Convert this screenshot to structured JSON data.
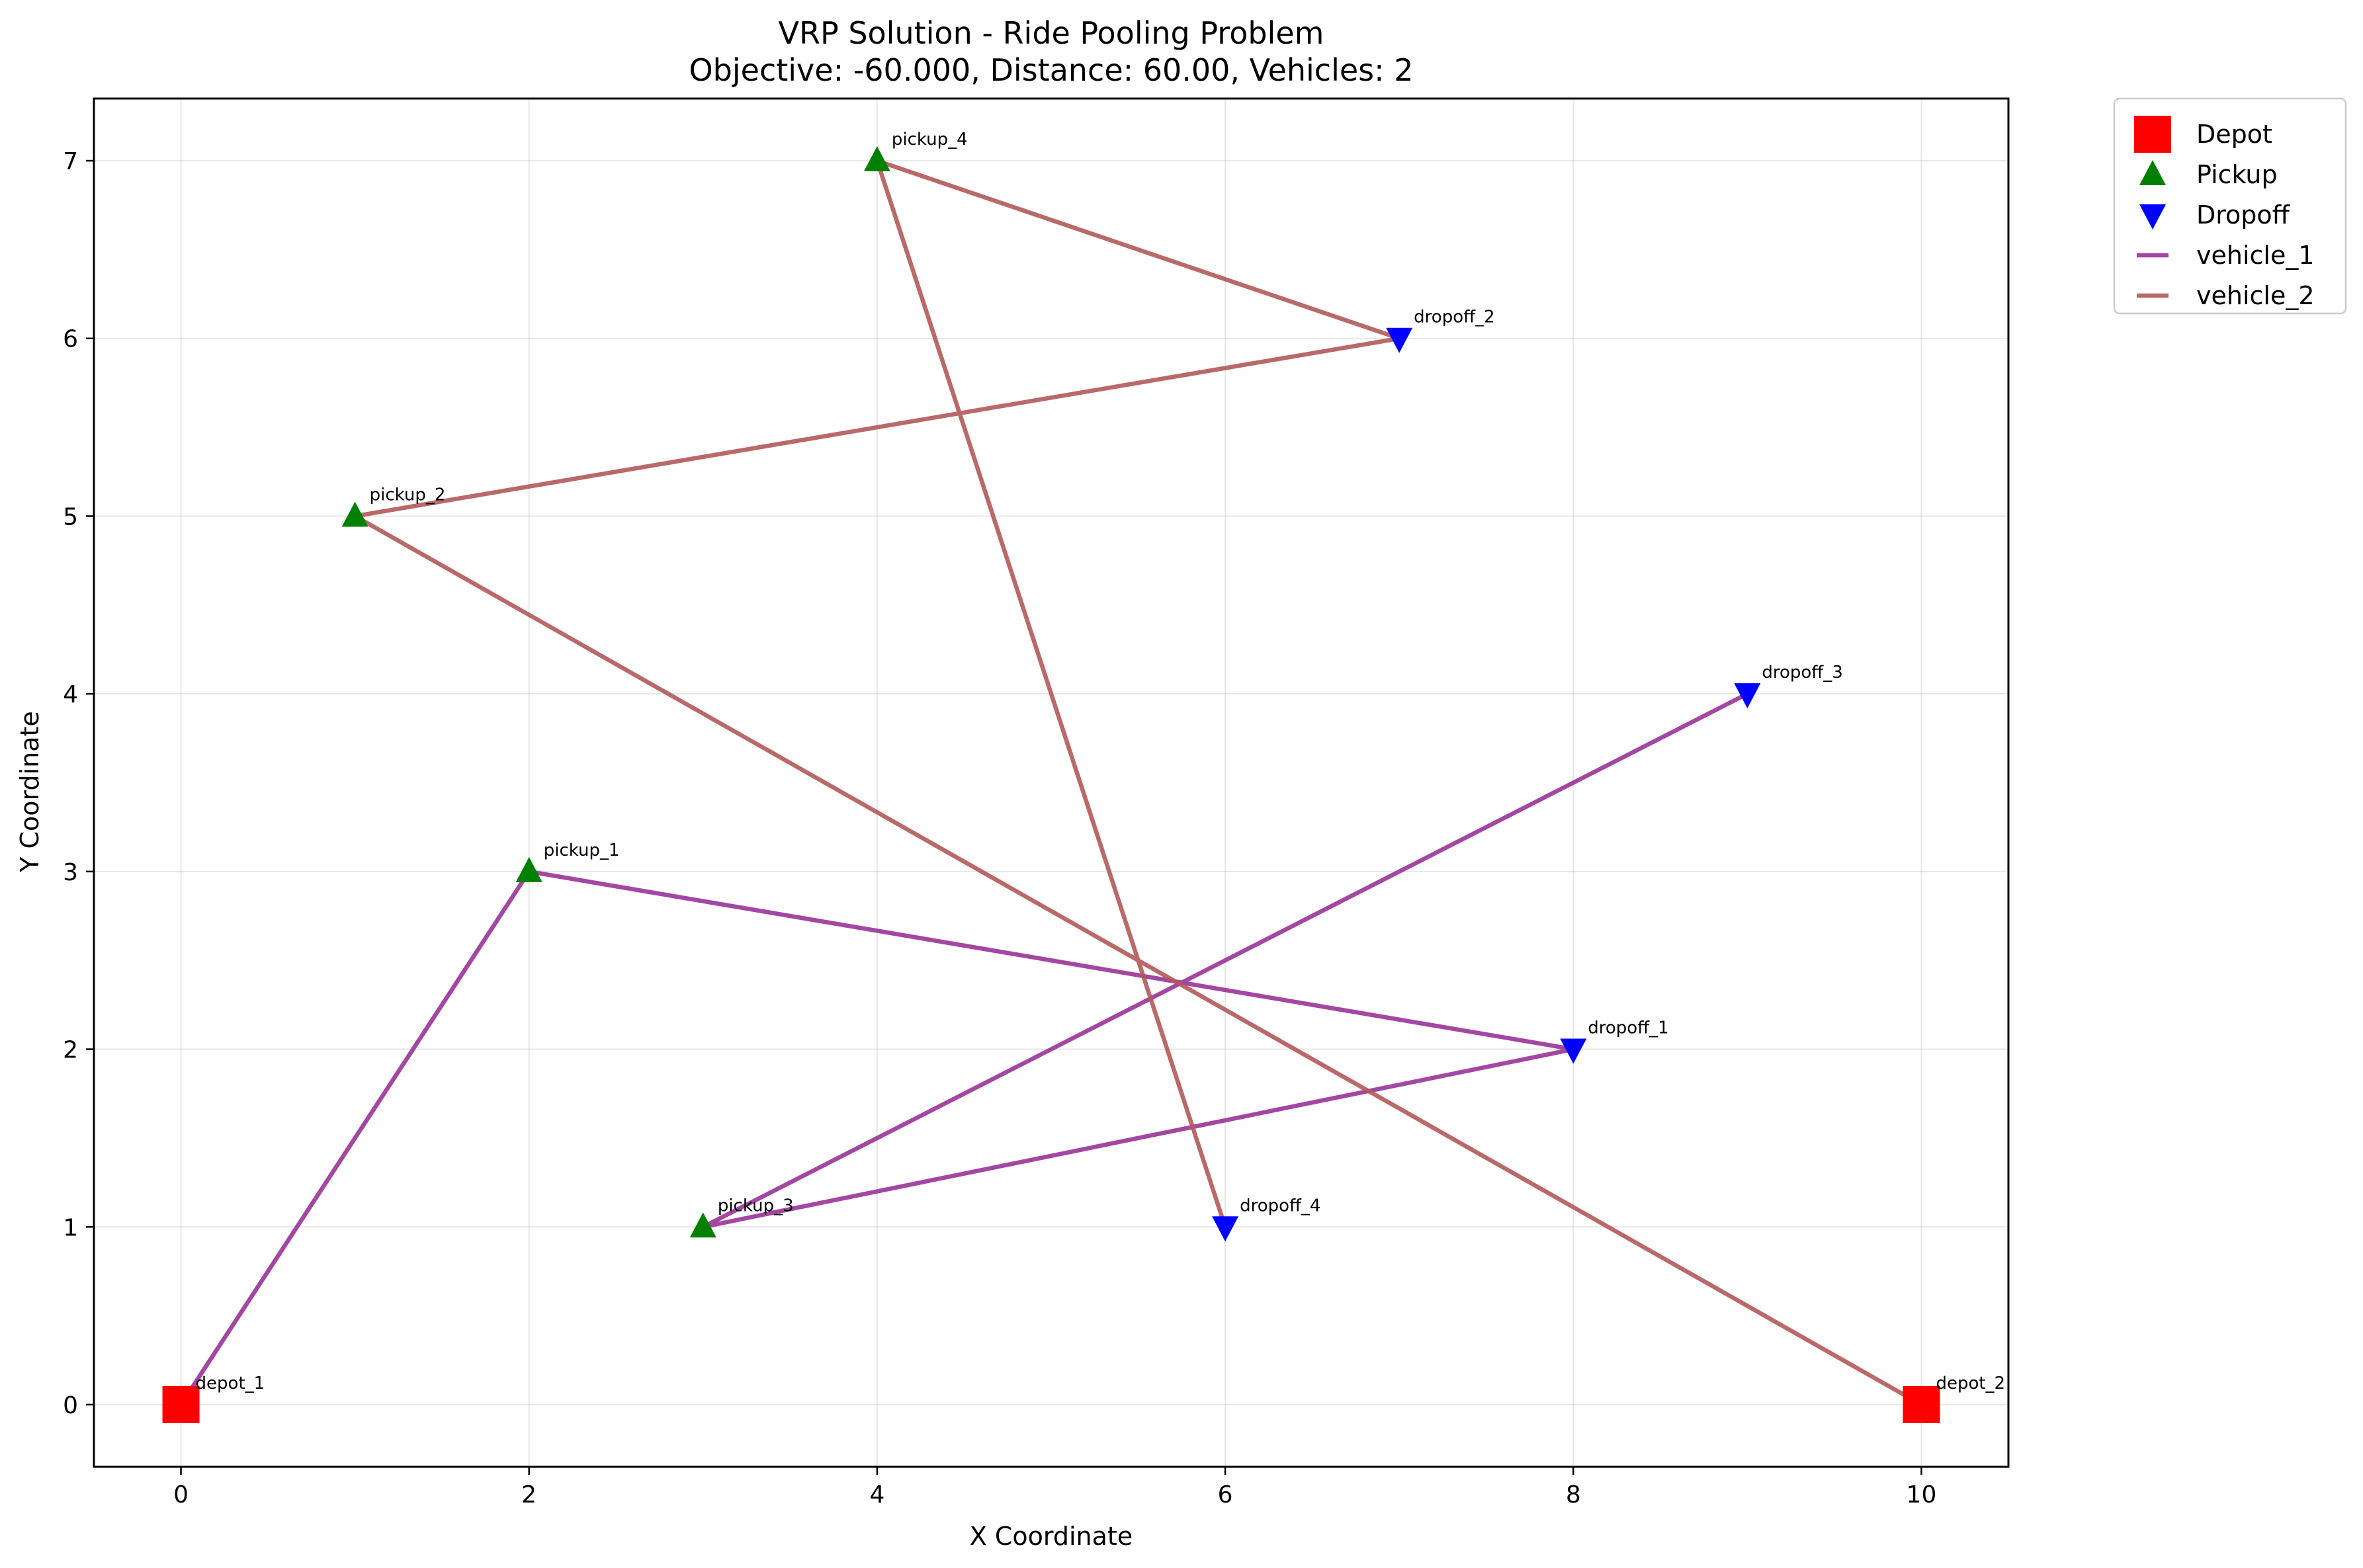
{
  "chart_data": {
    "type": "scatter",
    "title": "VRP Solution - Ride Pooling Problem",
    "subtitle": "Objective: -60.000, Distance: 60.00, Vehicles: 2",
    "xlabel": "X Coordinate",
    "ylabel": "Y Coordinate",
    "xlim": [
      -0.5,
      10.5
    ],
    "ylim": [
      -0.35,
      7.35
    ],
    "xticks": [
      0,
      2,
      4,
      6,
      8,
      10
    ],
    "yticks": [
      0,
      1,
      2,
      3,
      4,
      5,
      6,
      7
    ],
    "grid": true,
    "legend_position": "outside upper right",
    "points": [
      {
        "name": "depot_1",
        "kind": "depot",
        "x": 0,
        "y": 0
      },
      {
        "name": "depot_2",
        "kind": "depot",
        "x": 10,
        "y": 0
      },
      {
        "name": "pickup_1",
        "kind": "pickup",
        "x": 2,
        "y": 3
      },
      {
        "name": "pickup_2",
        "kind": "pickup",
        "x": 1,
        "y": 5
      },
      {
        "name": "pickup_3",
        "kind": "pickup",
        "x": 3,
        "y": 1
      },
      {
        "name": "pickup_4",
        "kind": "pickup",
        "x": 4,
        "y": 7
      },
      {
        "name": "dropoff_1",
        "kind": "dropoff",
        "x": 8,
        "y": 2
      },
      {
        "name": "dropoff_2",
        "kind": "dropoff",
        "x": 7,
        "y": 6
      },
      {
        "name": "dropoff_3",
        "kind": "dropoff",
        "x": 9,
        "y": 4
      },
      {
        "name": "dropoff_4",
        "kind": "dropoff",
        "x": 6,
        "y": 1
      }
    ],
    "routes": [
      {
        "name": "vehicle_1",
        "color": "#993399",
        "x": [
          0,
          2,
          8,
          3,
          9
        ],
        "y": [
          0,
          3,
          2,
          1,
          4
        ]
      },
      {
        "name": "vehicle_2",
        "color": "#b35959",
        "x": [
          10,
          1,
          7,
          4,
          6
        ],
        "y": [
          0,
          5,
          6,
          7,
          1
        ]
      }
    ],
    "legend": [
      {
        "label": "Depot",
        "marker": "square",
        "color": "#ff0000"
      },
      {
        "label": "Pickup",
        "marker": "triangle-up",
        "color": "#008000"
      },
      {
        "label": "Dropoff",
        "marker": "triangle-down",
        "color": "#0000ff"
      },
      {
        "label": "vehicle_1",
        "marker": "line",
        "color": "#993399"
      },
      {
        "label": "vehicle_2",
        "marker": "line",
        "color": "#b35959"
      }
    ],
    "colors": {
      "depot": "#ff0000",
      "pickup": "#008000",
      "dropoff": "#0000ff"
    }
  }
}
